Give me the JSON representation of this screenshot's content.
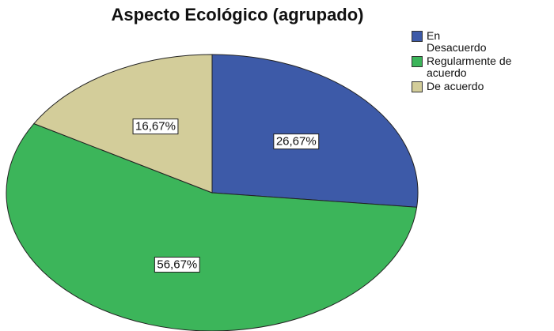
{
  "chart_data": {
    "type": "pie",
    "title": "Aspecto Ecológico (agrupado)",
    "categories": [
      "En Desacuerdo",
      "Regularmente de acuerdo",
      "De acuerdo"
    ],
    "values": [
      26.67,
      56.67,
      16.67
    ],
    "value_labels": [
      "26,67%",
      "56,67%",
      "16,67%"
    ],
    "colors": [
      "#3d5aa8",
      "#3cb55a",
      "#d3cd9a"
    ]
  }
}
